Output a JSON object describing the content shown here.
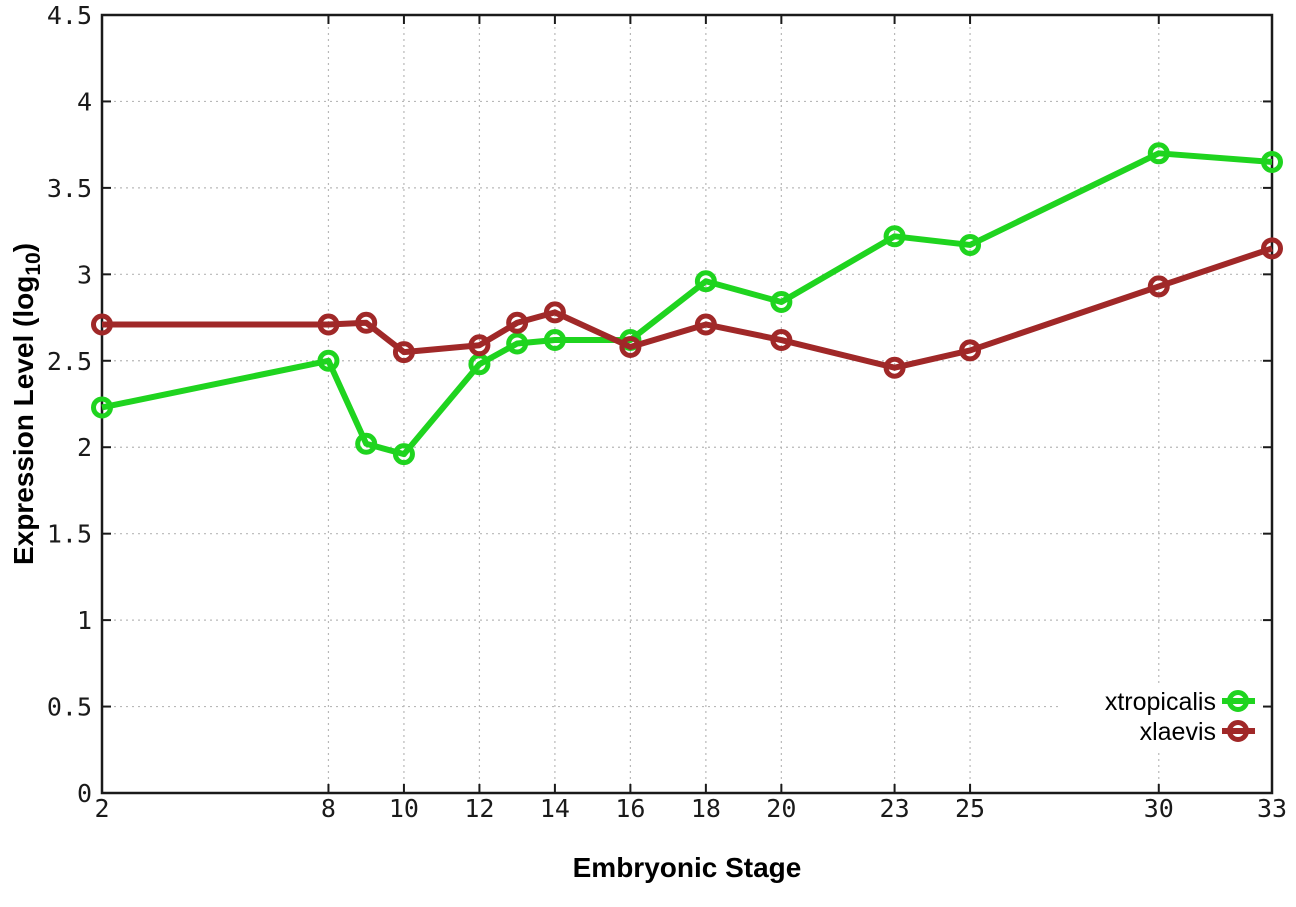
{
  "figure": {
    "xlabel": "Embryonic Stage",
    "ylabel_prefix": "Expression Level (log",
    "ylabel_sub": "10",
    "ylabel_suffix": ")",
    "background_color": "#ffffff",
    "border_color": "#1a1a1a",
    "grid_color": "#b8b8b8",
    "text_color": "#000000"
  },
  "chart_data": {
    "type": "line",
    "title": "",
    "xlabel": "Embryonic Stage",
    "ylabel": "Expression Level (log10)",
    "x": [
      2,
      8,
      9,
      10,
      12,
      13,
      14,
      16,
      18,
      20,
      23,
      25,
      30,
      33
    ],
    "series": [
      {
        "name": "xtropicalis",
        "color": "#1fd41f",
        "marker": "open-circle",
        "values": [
          2.23,
          2.5,
          2.02,
          1.96,
          2.48,
          2.6,
          2.62,
          2.62,
          2.96,
          2.84,
          3.22,
          3.17,
          3.7,
          3.65
        ]
      },
      {
        "name": "xlaevis",
        "color": "#a02828",
        "marker": "open-circle",
        "values": [
          2.71,
          2.71,
          2.72,
          2.55,
          2.59,
          2.72,
          2.78,
          2.58,
          2.71,
          2.62,
          2.46,
          2.56,
          2.93,
          3.15
        ]
      }
    ],
    "xticks": [
      2,
      8,
      10,
      12,
      14,
      16,
      18,
      20,
      23,
      25,
      30,
      33
    ],
    "yticks": [
      0,
      0.5,
      1,
      1.5,
      2,
      2.5,
      3,
      3.5,
      4,
      4.5
    ],
    "xlim": [
      2,
      33
    ],
    "ylim": [
      0,
      4.5
    ],
    "grid": true,
    "legend_position": "bottom-right"
  }
}
